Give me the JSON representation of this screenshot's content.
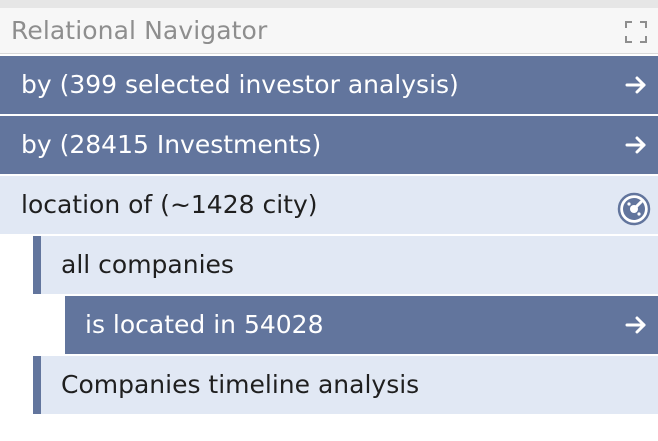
{
  "header": {
    "title": "Relational Navigator",
    "expand_icon": "expand-corners-icon"
  },
  "rows": [
    {
      "label": "by (399 selected investor analysis)",
      "style": "dark",
      "icon": "arrow-right-icon"
    },
    {
      "label": "by (28415 Investments)",
      "style": "dark",
      "icon": "arrow-right-icon"
    },
    {
      "label": "location of (~1428 city)",
      "style": "light",
      "icon": "compass-icon"
    },
    {
      "label": "all companies",
      "style": "light"
    },
    {
      "label": "is located in 54028",
      "style": "dark",
      "icon": "arrow-right-icon"
    },
    {
      "label": "Companies timeline analysis",
      "style": "light"
    }
  ],
  "colors": {
    "dark_row": "#62759d",
    "light_row": "#e1e8f4",
    "header_bg": "#f7f7f7",
    "header_text": "#8e8e8e"
  }
}
